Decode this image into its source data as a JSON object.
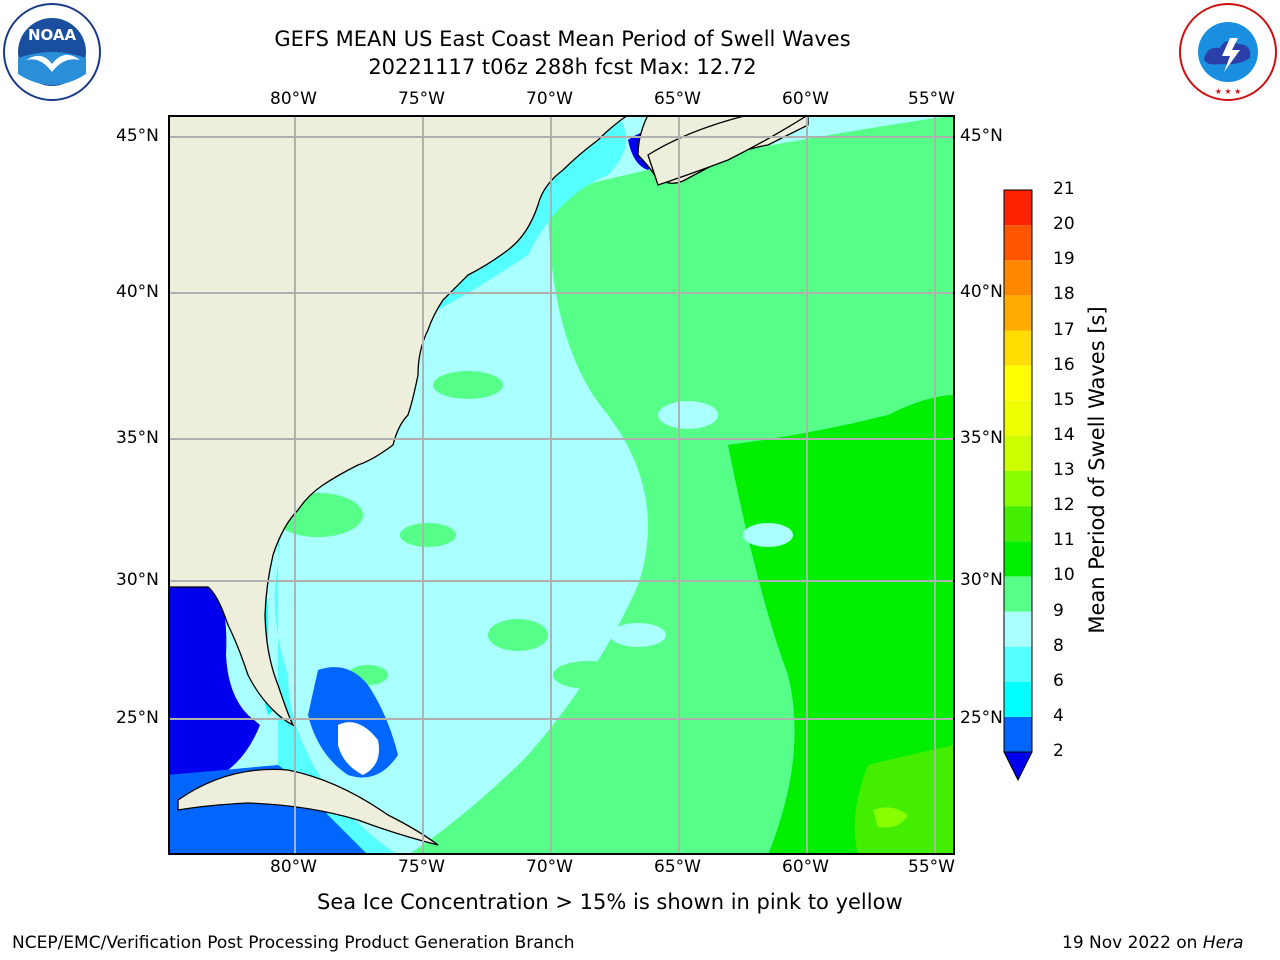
{
  "title": {
    "line1": "GEFS MEAN US East Coast Mean Period of Swell Waves",
    "line2": "20221117 t06z 288h fcst   Max: 12.72"
  },
  "map": {
    "lon_labels": [
      "80°W",
      "75°W",
      "70°W",
      "65°W",
      "60°W",
      "55°W"
    ],
    "lat_labels": [
      "45°N",
      "40°N",
      "35°N",
      "30°N",
      "25°N"
    ],
    "extent": {
      "lon_min": -84.5,
      "lon_max": -54.5,
      "lat_min": 20.0,
      "lat_max": 46.0
    },
    "land_color": "#eeeedc",
    "grid_color": "#b0b0b0"
  },
  "colorbar": {
    "title": "Mean Period of Swell Waves [s]",
    "levels": [
      "2",
      "4",
      "6",
      "8",
      "9",
      "10",
      "11",
      "12",
      "13",
      "14",
      "15",
      "16",
      "17",
      "18",
      "19",
      "20",
      "21"
    ],
    "colors": [
      "#0066ff",
      "#00ffff",
      "#55ffff",
      "#aaffff",
      "#55ff88",
      "#00ee00",
      "#44ee00",
      "#88ff00",
      "#ccff00",
      "#eeff00",
      "#ffff00",
      "#ffdd00",
      "#ffaa00",
      "#ff8800",
      "#ff5500",
      "#ff2200"
    ],
    "under_color": "#0000ee"
  },
  "caption": "Sea Ice Concentration > 15% is shown in pink to yellow",
  "footer": {
    "left": "NCEP/EMC/Verification Post Processing Product Generation Branch",
    "right_date": "19 Nov 2022 on ",
    "right_host": "Hera"
  },
  "logos": {
    "left_name": "NOAA",
    "right_name": "NATIONAL WEATHER SERVICE"
  }
}
